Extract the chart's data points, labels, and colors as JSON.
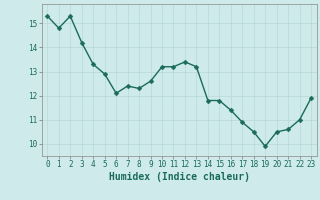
{
  "x": [
    0,
    1,
    2,
    3,
    4,
    5,
    6,
    7,
    8,
    9,
    10,
    11,
    12,
    13,
    14,
    15,
    16,
    17,
    18,
    19,
    20,
    21,
    22,
    23
  ],
  "y": [
    15.3,
    14.8,
    15.3,
    14.2,
    13.3,
    12.9,
    12.1,
    12.4,
    12.3,
    12.6,
    13.2,
    13.2,
    13.4,
    13.2,
    11.8,
    11.8,
    11.4,
    10.9,
    10.5,
    9.9,
    10.5,
    10.6,
    11.0,
    11.9
  ],
  "line_color": "#1a6b5a",
  "marker_color": "#1a6b5a",
  "bg_color": "#ceeaea",
  "grid_color": "#b8d8d8",
  "xlabel": "Humidex (Indice chaleur)",
  "ylim": [
    9.5,
    15.8
  ],
  "xlim": [
    -0.5,
    23.5
  ],
  "yticks": [
    10,
    11,
    12,
    13,
    14,
    15
  ],
  "xticks": [
    0,
    1,
    2,
    3,
    4,
    5,
    6,
    7,
    8,
    9,
    10,
    11,
    12,
    13,
    14,
    15,
    16,
    17,
    18,
    19,
    20,
    21,
    22,
    23
  ],
  "tick_fontsize": 5.5,
  "xlabel_fontsize": 7.0,
  "marker_size": 2.5,
  "line_width": 1.0
}
